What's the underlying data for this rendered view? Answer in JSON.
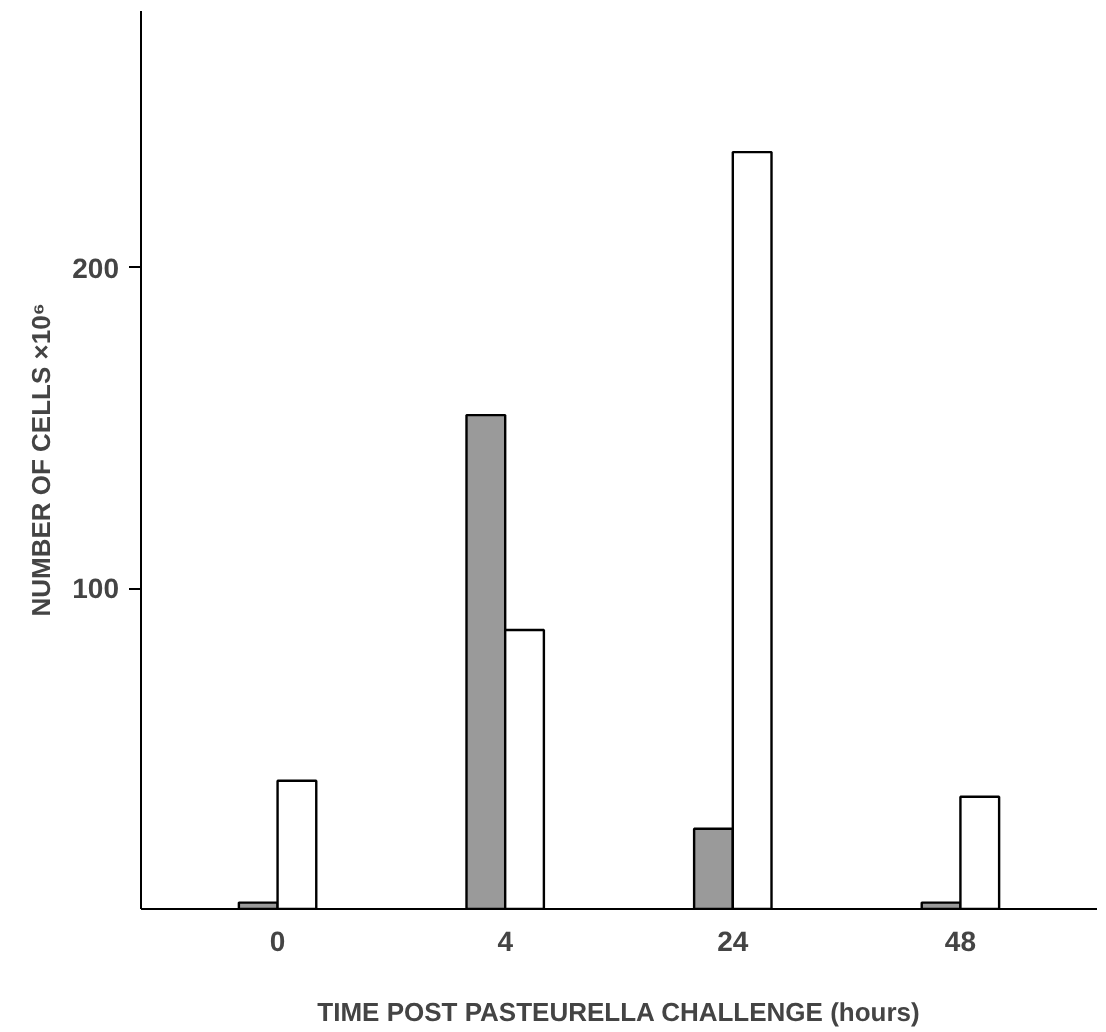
{
  "chart_data": {
    "type": "bar",
    "xlabel": "TIME POST PASTEURELLA CHALLENGE (hours)",
    "ylabel": "NUMBER OF CELLS ×10⁶",
    "categories": [
      "0",
      "4",
      "24",
      "48"
    ],
    "series": [
      {
        "color": "#9a9a9a",
        "values": [
          2,
          154,
          25,
          2
        ]
      },
      {
        "color": "#ffffff",
        "values": [
          40,
          87,
          236,
          35
        ]
      }
    ],
    "ylim": [
      0,
      280
    ],
    "yticks": [
      100,
      200
    ],
    "grid": false
  }
}
